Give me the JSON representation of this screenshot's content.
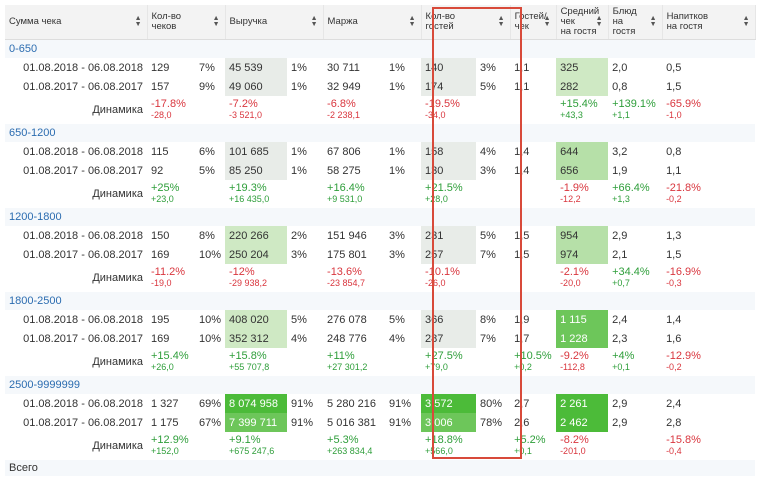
{
  "headers": [
    {
      "label": "Сумма чека",
      "sortable": true
    },
    {
      "label": "Кол-во\nчеков",
      "sortable": true
    },
    {
      "label": "Выручка",
      "sortable": true
    },
    {
      "label": "Маржа",
      "sortable": true
    },
    {
      "label": "Кол-во\nгостей",
      "sortable": true
    },
    {
      "label": "Гостей/\nчек",
      "sortable": true
    },
    {
      "label": "Средний\nчек\nна гостя",
      "sortable": true
    },
    {
      "label": "Блюд\nна\nгостя",
      "sortable": true
    },
    {
      "label": "Напитков\nна гостя",
      "sortable": true
    }
  ],
  "dynamics_label": "Динамика",
  "groups": [
    {
      "name": "0-650",
      "rows": [
        {
          "period": "01.08.2018 - 06.08.2018",
          "checks": "129",
          "checks_pct": "7%",
          "revenue": "45 539",
          "revenue_pct": "1%",
          "margin": "30 711",
          "margin_pct": "1%",
          "guests": "140",
          "guests_pct": "3%",
          "gpc": "1,1",
          "avg": "325",
          "dishes": "2,0",
          "drinks": "0,5"
        },
        {
          "period": "01.08.2017 - 06.08.2017",
          "checks": "157",
          "checks_pct": "9%",
          "revenue": "49 060",
          "revenue_pct": "1%",
          "margin": "32 949",
          "margin_pct": "1%",
          "guests": "174",
          "guests_pct": "5%",
          "gpc": "1,1",
          "avg": "282",
          "dishes": "0,8",
          "drinks": "1,5"
        }
      ],
      "dyn": {
        "checks": [
          "-17.8%",
          "-28,0",
          "neg"
        ],
        "revenue": [
          "-7.2%",
          "-3 521,0",
          "neg"
        ],
        "margin": [
          "-6.8%",
          "-2 238,1",
          "neg"
        ],
        "guests": [
          "-19.5%",
          "-34,0",
          "neg"
        ],
        "gpc": [
          "",
          "",
          " "
        ],
        "avg": [
          "+15.4%",
          "+43,3",
          "pos"
        ],
        "dishes": [
          "+139.1%",
          "+1,1",
          "pos"
        ],
        "drinks": [
          "-65.9%",
          "-1,0",
          "neg"
        ]
      }
    },
    {
      "name": "650-1200",
      "rows": [
        {
          "period": "01.08.2018 - 06.08.2018",
          "checks": "115",
          "checks_pct": "6%",
          "revenue": "101 685",
          "revenue_pct": "1%",
          "margin": "67 806",
          "margin_pct": "1%",
          "guests": "158",
          "guests_pct": "4%",
          "gpc": "1,4",
          "avg": "644",
          "dishes": "3,2",
          "drinks": "0,8"
        },
        {
          "period": "01.08.2017 - 06.08.2017",
          "checks": "92",
          "checks_pct": "5%",
          "revenue": "85 250",
          "revenue_pct": "1%",
          "margin": "58 275",
          "margin_pct": "1%",
          "guests": "130",
          "guests_pct": "3%",
          "gpc": "1,4",
          "avg": "656",
          "dishes": "1,9",
          "drinks": "1,1"
        }
      ],
      "dyn": {
        "checks": [
          "+25%",
          "+23,0",
          "pos"
        ],
        "revenue": [
          "+19.3%",
          "+16 435,0",
          "pos"
        ],
        "margin": [
          "+16.4%",
          "+9 531,0",
          "pos"
        ],
        "guests": [
          "+21.5%",
          "+28,0",
          "pos"
        ],
        "gpc": [
          "",
          "",
          " "
        ],
        "avg": [
          "-1.9%",
          "-12,2",
          "neg"
        ],
        "dishes": [
          "+66.4%",
          "+1,3",
          "pos"
        ],
        "drinks": [
          "-21.8%",
          "-0,2",
          "neg"
        ]
      }
    },
    {
      "name": "1200-1800",
      "rows": [
        {
          "period": "01.08.2018 - 06.08.2018",
          "checks": "150",
          "checks_pct": "8%",
          "revenue": "220 266",
          "revenue_pct": "2%",
          "margin": "151 946",
          "margin_pct": "3%",
          "guests": "231",
          "guests_pct": "5%",
          "gpc": "1,5",
          "avg": "954",
          "dishes": "2,9",
          "drinks": "1,3"
        },
        {
          "period": "01.08.2017 - 06.08.2017",
          "checks": "169",
          "checks_pct": "10%",
          "revenue": "250 204",
          "revenue_pct": "3%",
          "margin": "175 801",
          "margin_pct": "3%",
          "guests": "257",
          "guests_pct": "7%",
          "gpc": "1,5",
          "avg": "974",
          "dishes": "2,1",
          "drinks": "1,5"
        }
      ],
      "dyn": {
        "checks": [
          "-11.2%",
          "-19,0",
          "neg"
        ],
        "revenue": [
          "-12%",
          "-29 938,2",
          "neg"
        ],
        "margin": [
          "-13.6%",
          "-23 854,7",
          "neg"
        ],
        "guests": [
          "-10.1%",
          "-26,0",
          "neg"
        ],
        "gpc": [
          "",
          "",
          " "
        ],
        "avg": [
          "-2.1%",
          "-20,0",
          "neg"
        ],
        "dishes": [
          "+34.4%",
          "+0,7",
          "pos"
        ],
        "drinks": [
          "-16.9%",
          "-0,3",
          "neg"
        ]
      }
    },
    {
      "name": "1800-2500",
      "rows": [
        {
          "period": "01.08.2018 - 06.08.2018",
          "checks": "195",
          "checks_pct": "10%",
          "revenue": "408 020",
          "revenue_pct": "5%",
          "margin": "276 078",
          "margin_pct": "5%",
          "guests": "366",
          "guests_pct": "8%",
          "gpc": "1,9",
          "avg": "1 115",
          "dishes": "2,4",
          "drinks": "1,4"
        },
        {
          "period": "01.08.2017 - 06.08.2017",
          "checks": "169",
          "checks_pct": "10%",
          "revenue": "352 312",
          "revenue_pct": "4%",
          "margin": "248 776",
          "margin_pct": "4%",
          "guests": "287",
          "guests_pct": "7%",
          "gpc": "1,7",
          "avg": "1 228",
          "dishes": "2,3",
          "drinks": "1,6"
        }
      ],
      "dyn": {
        "checks": [
          "+15.4%",
          "+26,0",
          "pos"
        ],
        "revenue": [
          "+15.8%",
          "+55 707,8",
          "pos"
        ],
        "margin": [
          "+11%",
          "+27 301,2",
          "pos"
        ],
        "guests": [
          "+27.5%",
          "+79,0",
          "pos"
        ],
        "gpc": [
          "+10.5%",
          "+0,2",
          "pos"
        ],
        "avg": [
          "-9.2%",
          "-112,8",
          "neg"
        ],
        "dishes": [
          "+4%",
          "+0,1",
          "pos"
        ],
        "drinks": [
          "-12.9%",
          "-0,2",
          "neg"
        ]
      }
    },
    {
      "name": "2500-9999999",
      "rows": [
        {
          "period": "01.08.2018 - 06.08.2018",
          "checks": "1 327",
          "checks_pct": "69%",
          "revenue": "8 074 958",
          "revenue_pct": "91%",
          "margin": "5 280 216",
          "margin_pct": "91%",
          "guests": "3 572",
          "guests_pct": "80%",
          "gpc": "2,7",
          "avg": "2 261",
          "dishes": "2,9",
          "drinks": "2,4"
        },
        {
          "period": "01.08.2017 - 06.08.2017",
          "checks": "1 175",
          "checks_pct": "67%",
          "revenue": "7 399 711",
          "revenue_pct": "91%",
          "margin": "5 016 381",
          "margin_pct": "91%",
          "guests": "3 006",
          "guests_pct": "78%",
          "gpc": "2,6",
          "avg": "2 462",
          "dishes": "2,9",
          "drinks": "2,8"
        }
      ],
      "dyn": {
        "checks": [
          "+12.9%",
          "+152,0",
          "pos"
        ],
        "revenue": [
          "+9.1%",
          "+675 247,6",
          "pos"
        ],
        "margin": [
          "+5.3%",
          "+263 834,4",
          "pos"
        ],
        "guests": [
          "+18.8%",
          "+566,0",
          "pos"
        ],
        "gpc": [
          "+5.2%",
          "+0,1",
          "pos"
        ],
        "avg": [
          "-8.2%",
          "-201,0",
          "neg"
        ],
        "dishes": [
          "",
          "",
          " "
        ],
        "drinks": [
          "-15.8%",
          "-0,4",
          "neg"
        ]
      }
    }
  ],
  "cell_shading": {
    "revenue": [
      "b1",
      "b1",
      "b1",
      "b1",
      "b2",
      "b2",
      "b2",
      "b2",
      "b5",
      "b4"
    ],
    "guests": [
      "b1",
      "b1",
      "b1",
      "b1",
      "b1",
      "b1",
      "b1",
      "b1",
      "b5",
      "b4"
    ],
    "avg": [
      "b2",
      "b2",
      "b3",
      "b3",
      "b3",
      "b3",
      "b4",
      "b4",
      "b5",
      "b5"
    ]
  },
  "total_label": "Всего",
  "highlight_color": "#d84a3a"
}
